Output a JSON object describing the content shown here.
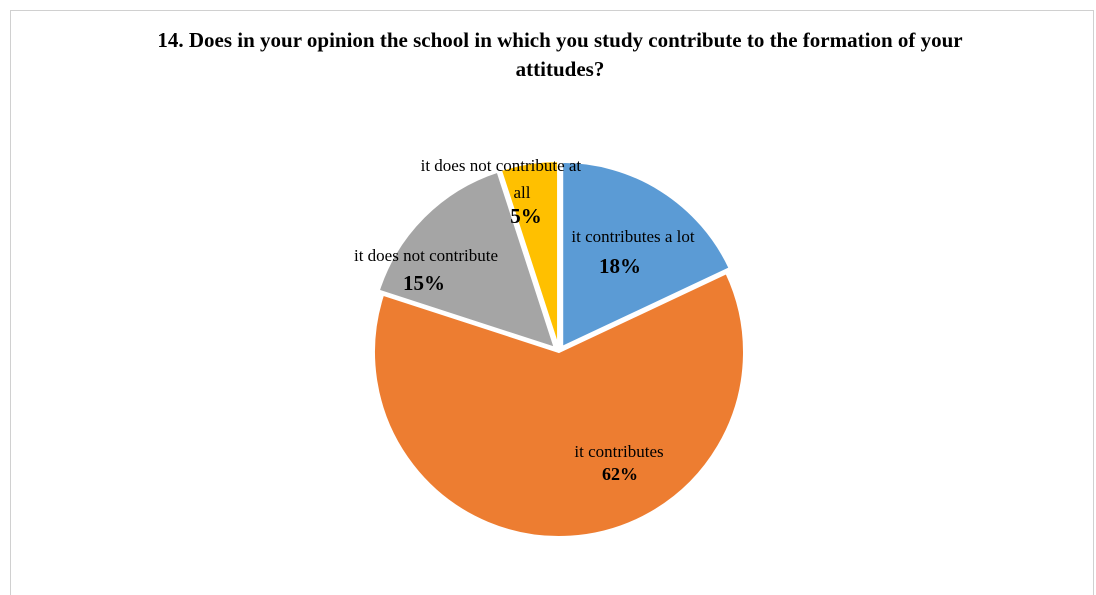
{
  "chart_data": {
    "type": "pie",
    "title": "14. Does in your opinion the school in which you study contribute to the formation of your attitudes?",
    "slices": [
      {
        "label": "it contributes a lot",
        "value": 18,
        "percent_label": "18%",
        "color": "#5B9BD5"
      },
      {
        "label": "it contributes",
        "value": 62,
        "percent_label": "62%",
        "color": "#ED7D31"
      },
      {
        "label": "it does not contribute",
        "value": 15,
        "percent_label": "15%",
        "color": "#A5A5A5"
      },
      {
        "label": "it does not contribute at all",
        "value": 5,
        "percent_label": "5%",
        "color": "#FFC000"
      }
    ],
    "legend": "none",
    "data_labels": "category and percent"
  }
}
